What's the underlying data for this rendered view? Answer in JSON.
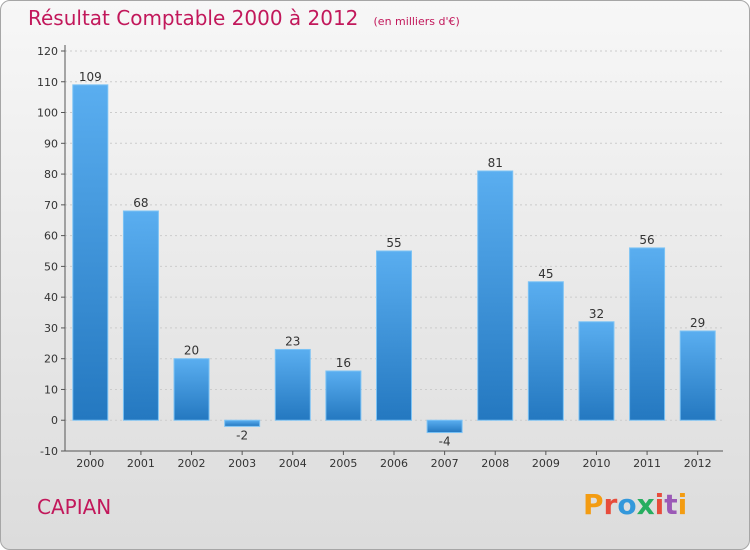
{
  "header": {
    "title": "Résultat Comptable 2000 à 2012",
    "subtitle": "(en milliers d'€)"
  },
  "footer": {
    "commune": "CAPIAN",
    "logo_text": "Proxiti",
    "logo_colors": [
      "#f39c12",
      "#e74c3c",
      "#3498db",
      "#27ae60",
      "#e74c3c",
      "#9b59b6",
      "#f39c12"
    ]
  },
  "colors": {
    "bar_top": "#5aaef0",
    "bar_bottom": "#2478c0",
    "grid": "#cccccc",
    "axis": "#555555",
    "accent": "#c2185b"
  },
  "chart_data": {
    "type": "bar",
    "categories": [
      "2000",
      "2001",
      "2002",
      "2003",
      "2004",
      "2005",
      "2006",
      "2007",
      "2008",
      "2009",
      "2010",
      "2011",
      "2012"
    ],
    "values": [
      109,
      68,
      20,
      -2,
      23,
      16,
      55,
      -4,
      81,
      45,
      32,
      56,
      29
    ],
    "title": "Résultat Comptable 2000 à 2012",
    "xlabel": "",
    "ylabel": "",
    "ylim": [
      -10,
      120
    ],
    "yticks": [
      -10,
      0,
      10,
      20,
      30,
      40,
      50,
      60,
      70,
      80,
      90,
      100,
      110,
      120
    ],
    "grid": "horizontal-dashed",
    "legend": "none"
  }
}
